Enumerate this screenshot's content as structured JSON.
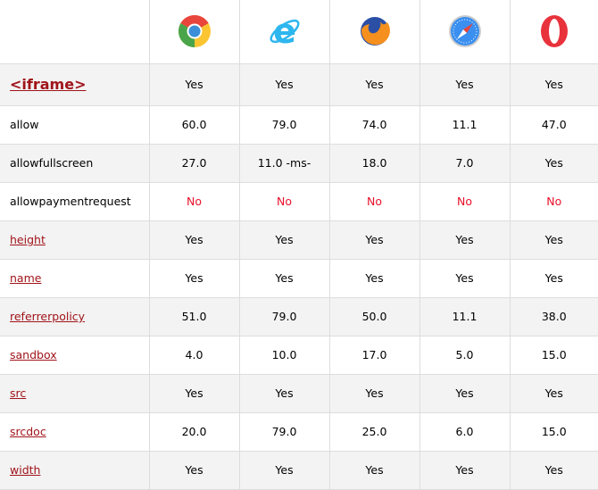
{
  "browsers": [
    {
      "name": "chrome",
      "icon": "chrome-icon"
    },
    {
      "name": "edge-ie",
      "icon": "internet-explorer-icon"
    },
    {
      "name": "firefox",
      "icon": "firefox-icon"
    },
    {
      "name": "safari",
      "icon": "safari-icon"
    },
    {
      "name": "opera",
      "icon": "opera-icon"
    }
  ],
  "rows": [
    {
      "label": "<iframe>",
      "link": true,
      "values": [
        "Yes",
        "Yes",
        "Yes",
        "Yes",
        "Yes"
      ]
    },
    {
      "label": "allow",
      "link": false,
      "values": [
        "60.0",
        "79.0",
        "74.0",
        "11.1",
        "47.0"
      ]
    },
    {
      "label": "allowfullscreen",
      "link": false,
      "values": [
        "27.0",
        "11.0 -ms-",
        "18.0",
        "7.0",
        "Yes"
      ]
    },
    {
      "label": "allowpaymentrequest",
      "link": false,
      "values": [
        "No",
        "No",
        "No",
        "No",
        "No"
      ]
    },
    {
      "label": "height",
      "link": true,
      "values": [
        "Yes",
        "Yes",
        "Yes",
        "Yes",
        "Yes"
      ]
    },
    {
      "label": "name",
      "link": true,
      "values": [
        "Yes",
        "Yes",
        "Yes",
        "Yes",
        "Yes"
      ]
    },
    {
      "label": "referrerpolicy",
      "link": true,
      "values": [
        "51.0",
        "79.0",
        "50.0",
        "11.1",
        "38.0"
      ]
    },
    {
      "label": "sandbox",
      "link": true,
      "values": [
        "4.0",
        "10.0",
        "17.0",
        "5.0",
        "15.0"
      ]
    },
    {
      "label": "src",
      "link": true,
      "values": [
        "Yes",
        "Yes",
        "Yes",
        "Yes",
        "Yes"
      ]
    },
    {
      "label": "srcdoc",
      "link": true,
      "values": [
        "20.0",
        "79.0",
        "25.0",
        "6.0",
        "15.0"
      ]
    },
    {
      "label": "width",
      "link": true,
      "values": [
        "Yes",
        "Yes",
        "Yes",
        "Yes",
        "Yes"
      ]
    }
  ],
  "colors": {
    "link": "#a0141a",
    "no": "#e8102a",
    "stripe": "#f3f3f3",
    "border": "#dddddd"
  }
}
